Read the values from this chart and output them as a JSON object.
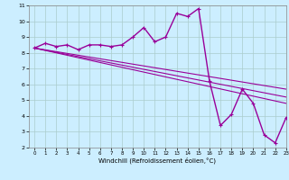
{
  "xlabel": "Windchill (Refroidissement éolien,°C)",
  "bg_color": "#cceeff",
  "grid_color": "#aacccc",
  "line_color": "#990099",
  "x_hours": [
    0,
    1,
    2,
    3,
    4,
    5,
    6,
    7,
    8,
    9,
    10,
    11,
    12,
    13,
    14,
    15,
    16,
    17,
    18,
    19,
    20,
    21,
    22,
    23
  ],
  "line1": [
    8.3,
    8.6,
    8.4,
    8.5,
    8.2,
    8.5,
    8.5,
    8.4,
    8.5,
    9.0,
    9.6,
    8.7,
    9.0,
    10.5,
    10.3,
    10.8,
    6.2,
    3.4,
    4.1,
    5.7,
    4.8,
    2.8,
    2.3,
    3.9
  ],
  "line2_x": [
    0,
    23
  ],
  "line2_y": [
    8.3,
    5.7
  ],
  "line3_x": [
    0,
    23
  ],
  "line3_y": [
    8.3,
    5.2
  ],
  "line4_x": [
    0,
    23
  ],
  "line4_y": [
    8.3,
    4.8
  ],
  "ylim": [
    2,
    11
  ],
  "xlim": [
    -0.5,
    23
  ],
  "yticks": [
    2,
    3,
    4,
    5,
    6,
    7,
    8,
    9,
    10,
    11
  ],
  "xticks": [
    0,
    1,
    2,
    3,
    4,
    5,
    6,
    7,
    8,
    9,
    10,
    11,
    12,
    13,
    14,
    15,
    16,
    17,
    18,
    19,
    20,
    21,
    22,
    23
  ]
}
